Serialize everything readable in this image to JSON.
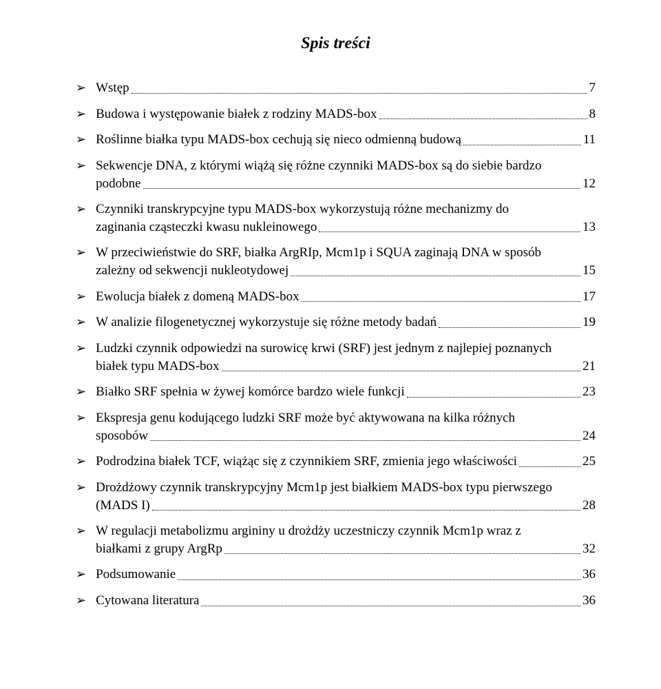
{
  "title": "Spis treści",
  "bullet_glyph": "➢",
  "text_color": "#000000",
  "background_color": "#ffffff",
  "entries": [
    {
      "text_lines": [
        "Wstęp"
      ],
      "page": "7"
    },
    {
      "text_lines": [
        "Budowa i występowanie białek z rodziny MADS-box"
      ],
      "page": "8"
    },
    {
      "text_lines": [
        "Roślinne białka typu MADS-box cechują się nieco odmienną budową"
      ],
      "page": "11"
    },
    {
      "text_lines": [
        "Sekwencje DNA, z którymi wiążą się różne czynniki  MADS-box są do siebie bardzo",
        "podobne"
      ],
      "page": "12"
    },
    {
      "text_lines": [
        "Czynniki transkrypcyjne typu MADS-box wykorzystują różne mechanizmy do",
        "zaginania cząsteczki kwasu nukleinowego"
      ],
      "page": "13"
    },
    {
      "text_lines": [
        "W przeciwieństwie do SRF, białka ArgRIp, Mcm1p i SQUA zaginają DNA w sposób",
        "zależny od sekwencji nukleotydowej"
      ],
      "page": "15"
    },
    {
      "text_lines": [
        "Ewolucja białek z domeną MADS-box"
      ],
      "page": "17"
    },
    {
      "text_lines": [
        "W analizie filogenetycznej wykorzystuje się różne metody badań"
      ],
      "page": "19"
    },
    {
      "text_lines": [
        "Ludzki czynnik odpowiedzi na surowicę krwi (SRF) jest jednym z najlepiej poznanych",
        "białek typu MADS-box"
      ],
      "page": "21"
    },
    {
      "text_lines": [
        "Białko SRF spełnia w żywej komórce bardzo wiele funkcji"
      ],
      "page": "23"
    },
    {
      "text_lines": [
        "Ekspresja genu kodującego ludzki SRF może być aktywowana na kilka różnych",
        "sposobów"
      ],
      "page": "24"
    },
    {
      "text_lines": [
        "Podrodzina białek TCF, wiążąc się z czynnikiem SRF, zmienia jego właściwości"
      ],
      "page": "25"
    },
    {
      "text_lines": [
        "Drożdżowy czynnik transkrypcyjny Mcm1p jest białkiem MADS-box typu pierwszego",
        "(MADS I)"
      ],
      "page": "28"
    },
    {
      "text_lines": [
        "W regulacji metabolizmu argininy u drożdży uczestniczy czynnik Mcm1p wraz z",
        "białkami z grupy ArgRp"
      ],
      "page": "32"
    },
    {
      "text_lines": [
        "Podsumowanie"
      ],
      "page": "36"
    },
    {
      "text_lines": [
        "Cytowana literatura"
      ],
      "page": "36"
    }
  ]
}
